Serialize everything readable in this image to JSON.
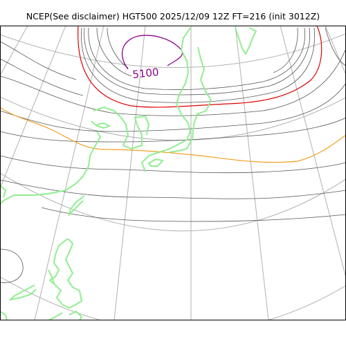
{
  "figure": {
    "title": "NCEP(See disclaimer) HGT500 2025/12/09 12Z FT=216 (init 3012Z)"
  },
  "map": {
    "product": "HGT500",
    "contour_labels": [
      {
        "text": "5100",
        "color": "#8b008b"
      }
    ],
    "colors": {
      "coastline": "#90ee90",
      "graticule": "#b0b0b0",
      "contour_normal": "#555555",
      "contour_5100": "#8b008b",
      "contour_5400": "#e00000",
      "contour_5700": "#f0a020",
      "frame": "#000000"
    }
  }
}
